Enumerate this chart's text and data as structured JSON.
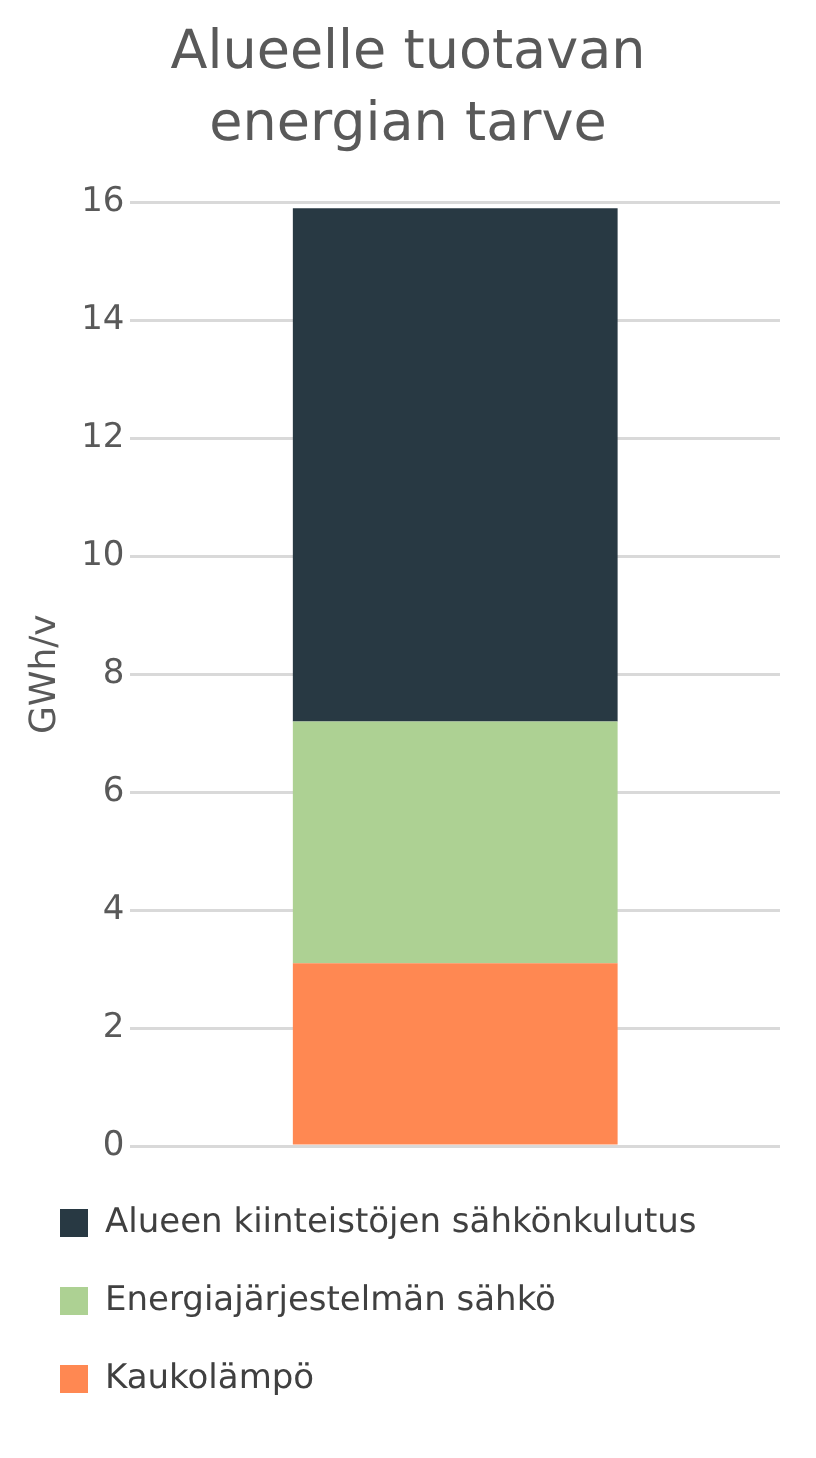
{
  "chart_data": {
    "type": "bar",
    "title": "Alueelle tuotavan energian tarve",
    "ylabel": "GWh/v",
    "categories": [
      null
    ],
    "stacked": true,
    "series": [
      {
        "name": "Kaukolämpö",
        "color": "#ff8852",
        "values": [
          3.1
        ]
      },
      {
        "name": "Energiajärjestelmän sähkö",
        "color": "#add193",
        "values": [
          4.1
        ]
      },
      {
        "name": "Alueen kiinteistöjen sähkönkulutus",
        "color": "#283943",
        "values": [
          8.7
        ]
      }
    ],
    "ylim": [
      0,
      16
    ],
    "yticks": [
      0,
      2,
      4,
      6,
      8,
      10,
      12,
      14,
      16
    ],
    "grid": "y",
    "legend": "bottom"
  }
}
